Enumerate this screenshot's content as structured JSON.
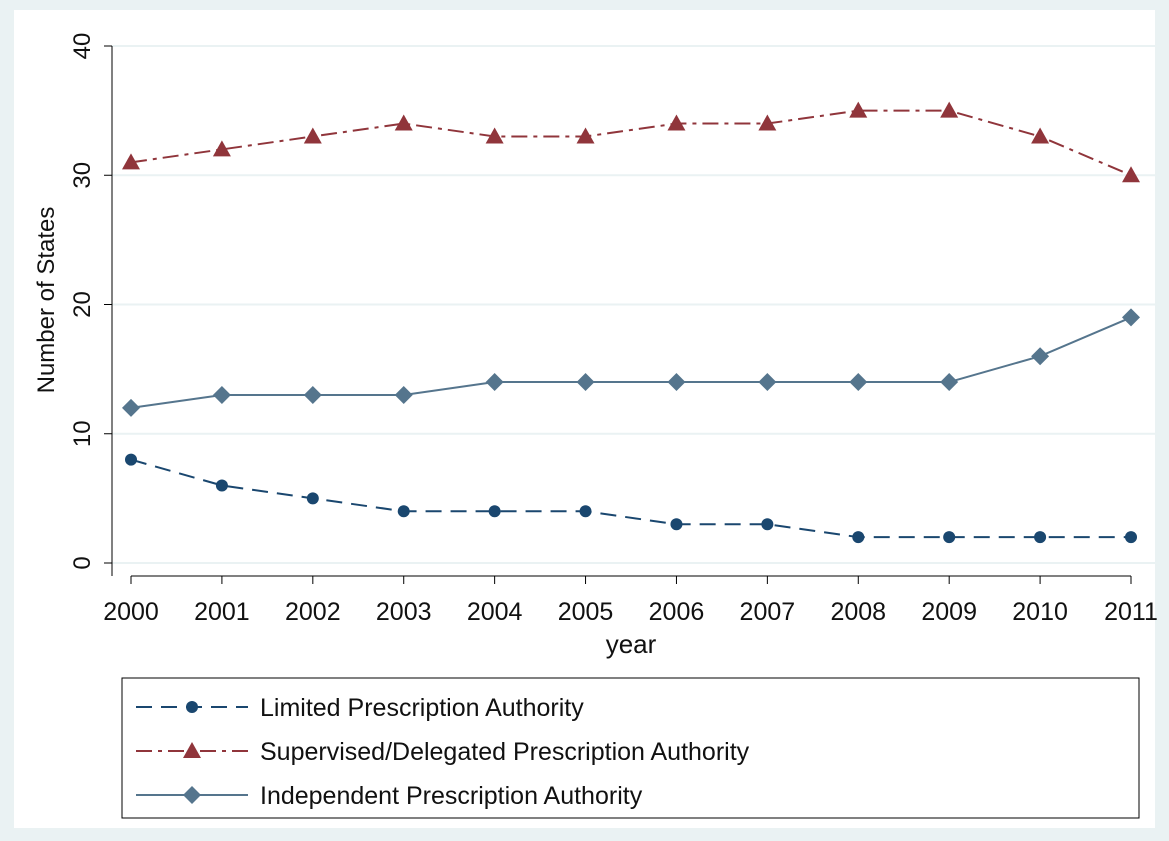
{
  "chart_data": {
    "type": "line",
    "ylabel": "Number of States",
    "xlabel": "year",
    "x": [
      2000,
      2001,
      2002,
      2003,
      2004,
      2005,
      2006,
      2007,
      2008,
      2009,
      2010,
      2011
    ],
    "x_ticks": [
      "2000",
      "2001",
      "2002",
      "2003",
      "2004",
      "2005",
      "2006",
      "2007",
      "2008",
      "2009",
      "2010",
      "2011"
    ],
    "y_ticks": [
      "0",
      "10",
      "20",
      "30",
      "40"
    ],
    "ylim": [
      0,
      40
    ],
    "xlim": [
      2000,
      2011
    ],
    "grid": true,
    "legend_position": "bottom",
    "series": [
      {
        "name": "Limited Prescription Authority",
        "values": [
          8,
          6,
          5,
          4,
          4,
          4,
          3,
          3,
          2,
          2,
          2,
          2
        ],
        "color": "#1a476f",
        "line_style": "dashed",
        "marker": "circle"
      },
      {
        "name": "Supervised/Delegated Prescription Authority",
        "values": [
          31,
          32,
          33,
          34,
          33,
          33,
          34,
          34,
          35,
          35,
          33,
          30
        ],
        "color": "#90353b",
        "line_style": "dash-dot",
        "marker": "triangle"
      },
      {
        "name": "Independent Prescription Authority",
        "values": [
          12,
          13,
          13,
          13,
          14,
          14,
          14,
          14,
          14,
          14,
          16,
          19
        ],
        "color": "#55758d",
        "line_style": "solid",
        "marker": "diamond"
      }
    ]
  },
  "colors": {
    "outer_background": "#eaf2f3",
    "plot_background": "#ffffff",
    "gridline": "#eaf2f3",
    "axis": "#000000"
  }
}
